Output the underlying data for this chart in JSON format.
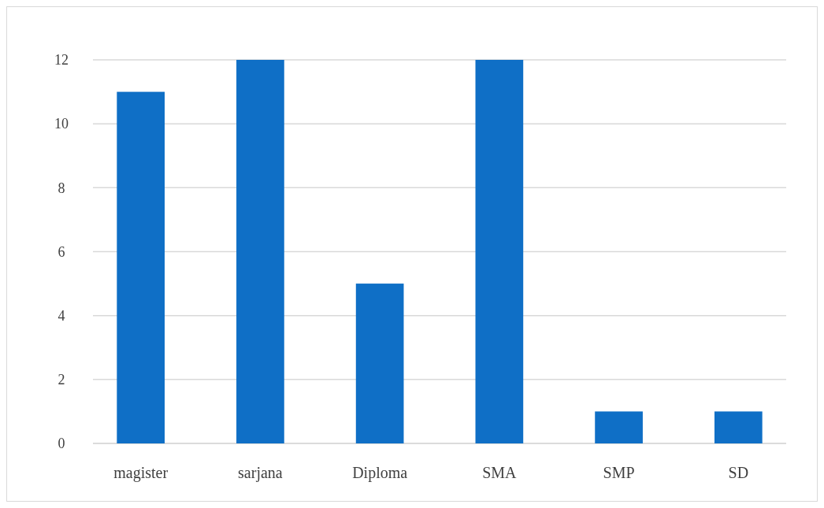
{
  "chart_data": {
    "type": "bar",
    "categories": [
      "magister",
      "sarjana",
      "Diploma",
      "SMA",
      "SMP",
      "SD"
    ],
    "values": [
      11,
      12,
      5,
      12,
      1,
      1
    ],
    "color": "#0f6fc6",
    "ylim": [
      0,
      12
    ],
    "yticks": [
      0,
      2,
      4,
      6,
      8,
      10,
      12
    ],
    "grid": "y"
  }
}
